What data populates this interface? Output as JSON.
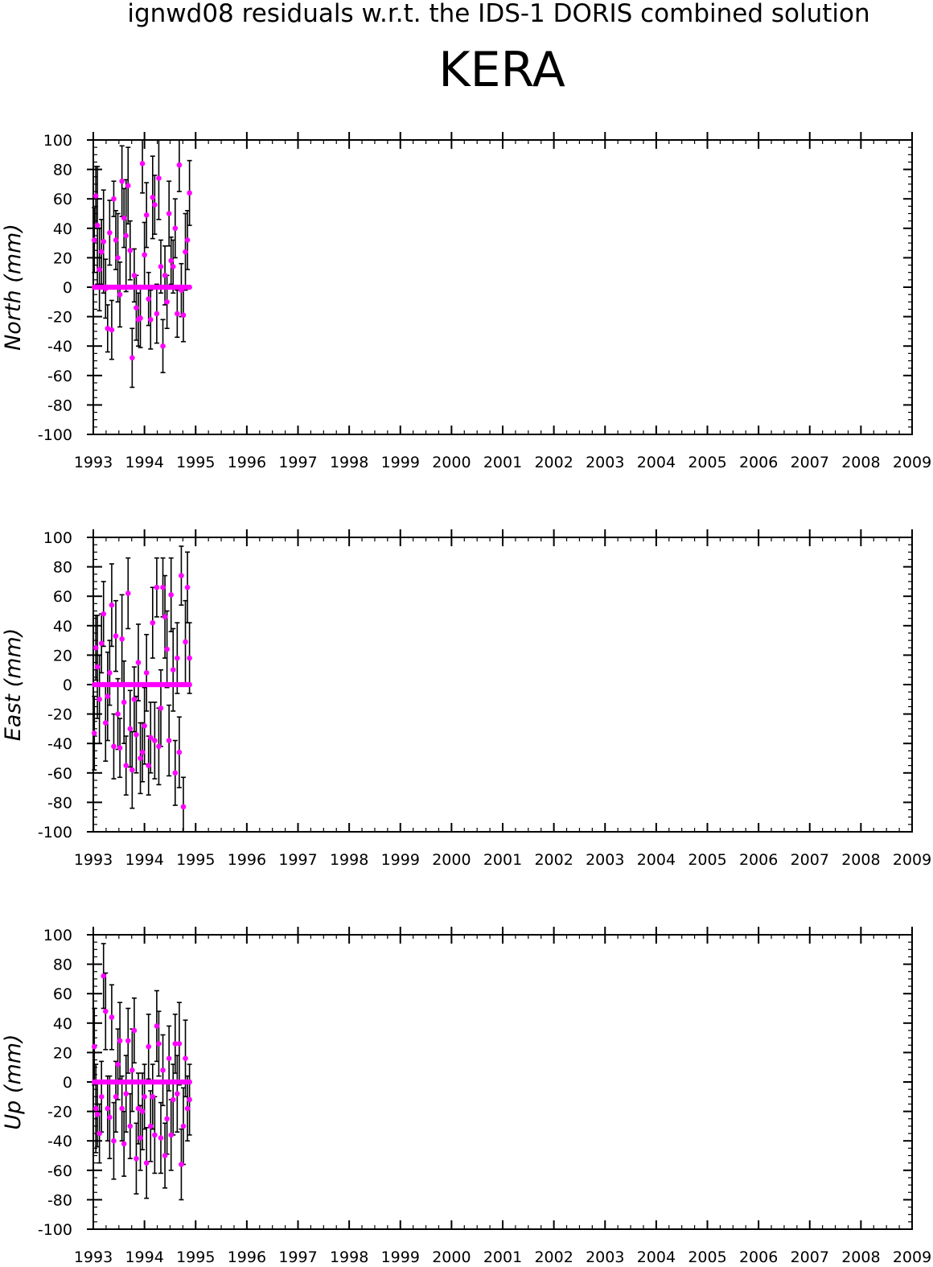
{
  "title": "ignwd08 residuals w.r.t. the IDS-1 DORIS combined solution",
  "station": "KERA",
  "colors": {
    "point": "#ff00ff",
    "errorbar": "#000000",
    "axis": "#000000"
  },
  "chart_data": [
    {
      "type": "scatter",
      "ylabel": "North (mm)",
      "xlim": [
        1993,
        2009
      ],
      "ylim": [
        -100,
        100
      ],
      "xticks": [
        "1993",
        "1994",
        "1995",
        "1996",
        "1997",
        "1998",
        "1999",
        "2000",
        "2001",
        "2002",
        "2003",
        "2004",
        "2005",
        "2006",
        "2007",
        "2008",
        "2009"
      ],
      "yticks": [
        "-100",
        "-80",
        "-60",
        "-40",
        "-20",
        "0",
        "20",
        "40",
        "60",
        "80",
        "100"
      ],
      "grid": false,
      "points": [
        {
          "x": 1993.02,
          "y": 32,
          "err": 22
        },
        {
          "x": 1993.05,
          "y": 62,
          "err": 20
        },
        {
          "x": 1993.08,
          "y": 42,
          "err": 40
        },
        {
          "x": 1993.12,
          "y": 12,
          "err": 28
        },
        {
          "x": 1993.16,
          "y": 24,
          "err": 22
        },
        {
          "x": 1993.2,
          "y": 31,
          "err": 35
        },
        {
          "x": 1993.24,
          "y": -1,
          "err": 20
        },
        {
          "x": 1993.28,
          "y": -28,
          "err": 16
        },
        {
          "x": 1993.32,
          "y": 37,
          "err": 22
        },
        {
          "x": 1993.36,
          "y": -29,
          "err": 20
        },
        {
          "x": 1993.4,
          "y": 60,
          "err": 12
        },
        {
          "x": 1993.44,
          "y": 32,
          "err": 20
        },
        {
          "x": 1993.48,
          "y": 20,
          "err": 30
        },
        {
          "x": 1993.52,
          "y": -5,
          "err": 22
        },
        {
          "x": 1993.56,
          "y": 72,
          "err": 24
        },
        {
          "x": 1993.6,
          "y": 47,
          "err": 20
        },
        {
          "x": 1993.64,
          "y": 35,
          "err": 38
        },
        {
          "x": 1993.68,
          "y": 69,
          "err": 26
        },
        {
          "x": 1993.72,
          "y": 25,
          "err": 20
        },
        {
          "x": 1993.76,
          "y": -48,
          "err": 20
        },
        {
          "x": 1993.8,
          "y": 8,
          "err": 18
        },
        {
          "x": 1993.84,
          "y": -14,
          "err": 22
        },
        {
          "x": 1993.88,
          "y": -22,
          "err": 18
        },
        {
          "x": 1993.92,
          "y": -21,
          "err": 20
        },
        {
          "x": 1993.96,
          "y": 84,
          "err": 20
        },
        {
          "x": 1994.0,
          "y": 22,
          "err": 22
        },
        {
          "x": 1994.04,
          "y": 49,
          "err": 22
        },
        {
          "x": 1994.08,
          "y": -8,
          "err": 18
        },
        {
          "x": 1994.12,
          "y": -22,
          "err": 20
        },
        {
          "x": 1994.16,
          "y": 61,
          "err": 28
        },
        {
          "x": 1994.2,
          "y": 56,
          "err": 20
        },
        {
          "x": 1994.24,
          "y": -18,
          "err": 20
        },
        {
          "x": 1994.28,
          "y": 74,
          "err": 28
        },
        {
          "x": 1994.32,
          "y": 14,
          "err": 18
        },
        {
          "x": 1994.36,
          "y": -40,
          "err": 18
        },
        {
          "x": 1994.4,
          "y": 8,
          "err": 20
        },
        {
          "x": 1994.44,
          "y": -10,
          "err": 18
        },
        {
          "x": 1994.48,
          "y": 50,
          "err": 22
        },
        {
          "x": 1994.52,
          "y": 18,
          "err": 16
        },
        {
          "x": 1994.56,
          "y": 14,
          "err": 18
        },
        {
          "x": 1994.6,
          "y": 40,
          "err": 20
        },
        {
          "x": 1994.64,
          "y": -18,
          "err": 16
        },
        {
          "x": 1994.68,
          "y": 83,
          "err": 18
        },
        {
          "x": 1994.72,
          "y": -2,
          "err": 18
        },
        {
          "x": 1994.76,
          "y": -19,
          "err": 18
        },
        {
          "x": 1994.8,
          "y": 24,
          "err": 26
        },
        {
          "x": 1994.84,
          "y": 32,
          "err": 20
        },
        {
          "x": 1994.88,
          "y": 64,
          "err": 22
        }
      ]
    },
    {
      "type": "scatter",
      "ylabel": "East (mm)",
      "xlim": [
        1993,
        2009
      ],
      "ylim": [
        -100,
        100
      ],
      "xticks": [
        "1993",
        "1994",
        "1995",
        "1996",
        "1997",
        "1998",
        "1999",
        "2000",
        "2001",
        "2002",
        "2003",
        "2004",
        "2005",
        "2006",
        "2007",
        "2008",
        "2009"
      ],
      "yticks": [
        "-100",
        "-80",
        "-60",
        "-40",
        "-20",
        "0",
        "20",
        "40",
        "60",
        "80",
        "100"
      ],
      "grid": false,
      "points": [
        {
          "x": 1993.02,
          "y": -33,
          "err": 25
        },
        {
          "x": 1993.05,
          "y": 25,
          "err": 22
        },
        {
          "x": 1993.08,
          "y": 12,
          "err": 35
        },
        {
          "x": 1993.12,
          "y": -10,
          "err": 30
        },
        {
          "x": 1993.16,
          "y": 28,
          "err": 20
        },
        {
          "x": 1993.2,
          "y": 48,
          "err": 22
        },
        {
          "x": 1993.24,
          "y": -26,
          "err": 26
        },
        {
          "x": 1993.28,
          "y": -8,
          "err": 30
        },
        {
          "x": 1993.32,
          "y": 8,
          "err": 22
        },
        {
          "x": 1993.36,
          "y": 54,
          "err": 28
        },
        {
          "x": 1993.4,
          "y": -42,
          "err": 22
        },
        {
          "x": 1993.44,
          "y": 33,
          "err": 24
        },
        {
          "x": 1993.48,
          "y": -20,
          "err": 24
        },
        {
          "x": 1993.52,
          "y": -43,
          "err": 20
        },
        {
          "x": 1993.56,
          "y": 31,
          "err": 30
        },
        {
          "x": 1993.6,
          "y": -12,
          "err": 28
        },
        {
          "x": 1993.64,
          "y": -55,
          "err": 20
        },
        {
          "x": 1993.68,
          "y": 62,
          "err": 24
        },
        {
          "x": 1993.72,
          "y": -30,
          "err": 26
        },
        {
          "x": 1993.76,
          "y": -58,
          "err": 26
        },
        {
          "x": 1993.8,
          "y": -10,
          "err": 22
        },
        {
          "x": 1993.84,
          "y": -34,
          "err": 26
        },
        {
          "x": 1993.88,
          "y": 15,
          "err": 26
        },
        {
          "x": 1993.92,
          "y": -50,
          "err": 24
        },
        {
          "x": 1993.96,
          "y": -46,
          "err": 20
        },
        {
          "x": 1994.0,
          "y": -28,
          "err": 26
        },
        {
          "x": 1994.04,
          "y": 8,
          "err": 26
        },
        {
          "x": 1994.08,
          "y": -55,
          "err": 20
        },
        {
          "x": 1994.12,
          "y": -36,
          "err": 24
        },
        {
          "x": 1994.16,
          "y": 42,
          "err": 24
        },
        {
          "x": 1994.2,
          "y": -38,
          "err": 26
        },
        {
          "x": 1994.24,
          "y": 66,
          "err": 20
        },
        {
          "x": 1994.28,
          "y": -42,
          "err": 26
        },
        {
          "x": 1994.32,
          "y": -16,
          "err": 26
        },
        {
          "x": 1994.36,
          "y": 66,
          "err": 20
        },
        {
          "x": 1994.4,
          "y": 46,
          "err": 28
        },
        {
          "x": 1994.44,
          "y": 24,
          "err": 26
        },
        {
          "x": 1994.48,
          "y": -38,
          "err": 24
        },
        {
          "x": 1994.52,
          "y": 61,
          "err": 25
        },
        {
          "x": 1994.56,
          "y": 10,
          "err": 28
        },
        {
          "x": 1994.6,
          "y": -60,
          "err": 22
        },
        {
          "x": 1994.64,
          "y": 18,
          "err": 24
        },
        {
          "x": 1994.68,
          "y": -46,
          "err": 24
        },
        {
          "x": 1994.72,
          "y": 74,
          "err": 20
        },
        {
          "x": 1994.76,
          "y": -83,
          "err": 20
        },
        {
          "x": 1994.8,
          "y": 29,
          "err": 28
        },
        {
          "x": 1994.84,
          "y": 66,
          "err": 24
        },
        {
          "x": 1994.88,
          "y": 18,
          "err": 24
        }
      ]
    },
    {
      "type": "scatter",
      "ylabel": "Up (mm)",
      "xlim": [
        1993,
        2009
      ],
      "ylim": [
        -100,
        100
      ],
      "xticks": [
        "1993",
        "1994",
        "1995",
        "1996",
        "1997",
        "1998",
        "1999",
        "2000",
        "2001",
        "2002",
        "2003",
        "2004",
        "2005",
        "2006",
        "2007",
        "2008",
        "2009"
      ],
      "yticks": [
        "-100",
        "-80",
        "-60",
        "-40",
        "-20",
        "0",
        "20",
        "40",
        "60",
        "80",
        "100"
      ],
      "grid": false,
      "points": [
        {
          "x": 1993.02,
          "y": 24,
          "err": 26
        },
        {
          "x": 1993.05,
          "y": -18,
          "err": 30
        },
        {
          "x": 1993.08,
          "y": -22,
          "err": 22
        },
        {
          "x": 1993.12,
          "y": -35,
          "err": 20
        },
        {
          "x": 1993.16,
          "y": -10,
          "err": 24
        },
        {
          "x": 1993.2,
          "y": 72,
          "err": 22
        },
        {
          "x": 1993.24,
          "y": 48,
          "err": 26
        },
        {
          "x": 1993.28,
          "y": -18,
          "err": 22
        },
        {
          "x": 1993.32,
          "y": -24,
          "err": 28
        },
        {
          "x": 1993.36,
          "y": 44,
          "err": 22
        },
        {
          "x": 1993.4,
          "y": -40,
          "err": 26
        },
        {
          "x": 1993.44,
          "y": -10,
          "err": 24
        },
        {
          "x": 1993.48,
          "y": 12,
          "err": 24
        },
        {
          "x": 1993.52,
          "y": 28,
          "err": 26
        },
        {
          "x": 1993.56,
          "y": -18,
          "err": 22
        },
        {
          "x": 1993.6,
          "y": -42,
          "err": 22
        },
        {
          "x": 1993.64,
          "y": -8,
          "err": 26
        },
        {
          "x": 1993.68,
          "y": 28,
          "err": 22
        },
        {
          "x": 1993.72,
          "y": -30,
          "err": 22
        },
        {
          "x": 1993.76,
          "y": 8,
          "err": 28
        },
        {
          "x": 1993.8,
          "y": 35,
          "err": 22
        },
        {
          "x": 1993.84,
          "y": -52,
          "err": 24
        },
        {
          "x": 1993.88,
          "y": -18,
          "err": 24
        },
        {
          "x": 1993.92,
          "y": -38,
          "err": 22
        },
        {
          "x": 1993.96,
          "y": -20,
          "err": 26
        },
        {
          "x": 1994.0,
          "y": -10,
          "err": 22
        },
        {
          "x": 1994.04,
          "y": -55,
          "err": 24
        },
        {
          "x": 1994.08,
          "y": 24,
          "err": 22
        },
        {
          "x": 1994.12,
          "y": -30,
          "err": 24
        },
        {
          "x": 1994.16,
          "y": -10,
          "err": 22
        },
        {
          "x": 1994.2,
          "y": -36,
          "err": 26
        },
        {
          "x": 1994.24,
          "y": 38,
          "err": 24
        },
        {
          "x": 1994.28,
          "y": 26,
          "err": 22
        },
        {
          "x": 1994.32,
          "y": -38,
          "err": 24
        },
        {
          "x": 1994.36,
          "y": 8,
          "err": 24
        },
        {
          "x": 1994.4,
          "y": -50,
          "err": 22
        },
        {
          "x": 1994.44,
          "y": -25,
          "err": 24
        },
        {
          "x": 1994.48,
          "y": 16,
          "err": 22
        },
        {
          "x": 1994.52,
          "y": -36,
          "err": 24
        },
        {
          "x": 1994.56,
          "y": -12,
          "err": 24
        },
        {
          "x": 1994.6,
          "y": 26,
          "err": 20
        },
        {
          "x": 1994.64,
          "y": -8,
          "err": 26
        },
        {
          "x": 1994.68,
          "y": 26,
          "err": 28
        },
        {
          "x": 1994.72,
          "y": -56,
          "err": 24
        },
        {
          "x": 1994.76,
          "y": -30,
          "err": 26
        },
        {
          "x": 1994.8,
          "y": 16,
          "err": 26
        },
        {
          "x": 1994.84,
          "y": -18,
          "err": 22
        },
        {
          "x": 1994.88,
          "y": -12,
          "err": 24
        }
      ]
    }
  ]
}
